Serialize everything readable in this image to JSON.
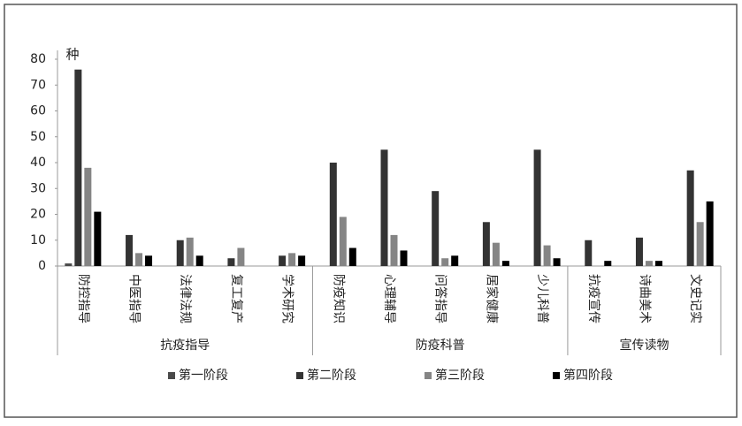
{
  "chart_data": {
    "type": "bar",
    "y_label": "种",
    "groups": [
      {
        "name": "抗疫指导",
        "categories": [
          "防控指导",
          "中医指导",
          "法律法规",
          "复工复产",
          "学术研究"
        ]
      },
      {
        "name": "防疫科普",
        "categories": [
          "防疫知识",
          "心理辅导",
          "问答指导",
          "居家健康",
          "少儿科普"
        ]
      },
      {
        "name": "宣传读物",
        "categories": [
          "抗疫宣传",
          "诗曲美术",
          "文史记实"
        ]
      }
    ],
    "series": [
      {
        "name": "第一阶段",
        "color": "#4a4a4a",
        "values": [
          1,
          0,
          0,
          0,
          0,
          0,
          0,
          0,
          0,
          0,
          0,
          0,
          0
        ]
      },
      {
        "name": "第二阶段",
        "color": "#333333",
        "values": [
          76,
          12,
          10,
          3,
          4,
          40,
          45,
          29,
          17,
          45,
          10,
          11,
          37
        ]
      },
      {
        "name": "第三阶段",
        "color": "#858585",
        "values": [
          38,
          5,
          11,
          7,
          5,
          19,
          12,
          3,
          9,
          8,
          0,
          2,
          17
        ]
      },
      {
        "name": "第四阶段",
        "color": "#000000",
        "values": [
          21,
          4,
          4,
          0,
          4,
          7,
          6,
          4,
          2,
          3,
          2,
          2,
          25
        ]
      }
    ],
    "ylim": [
      0,
      80
    ],
    "yticks": [
      0,
      10,
      20,
      30,
      40,
      50,
      60,
      70,
      80
    ]
  }
}
